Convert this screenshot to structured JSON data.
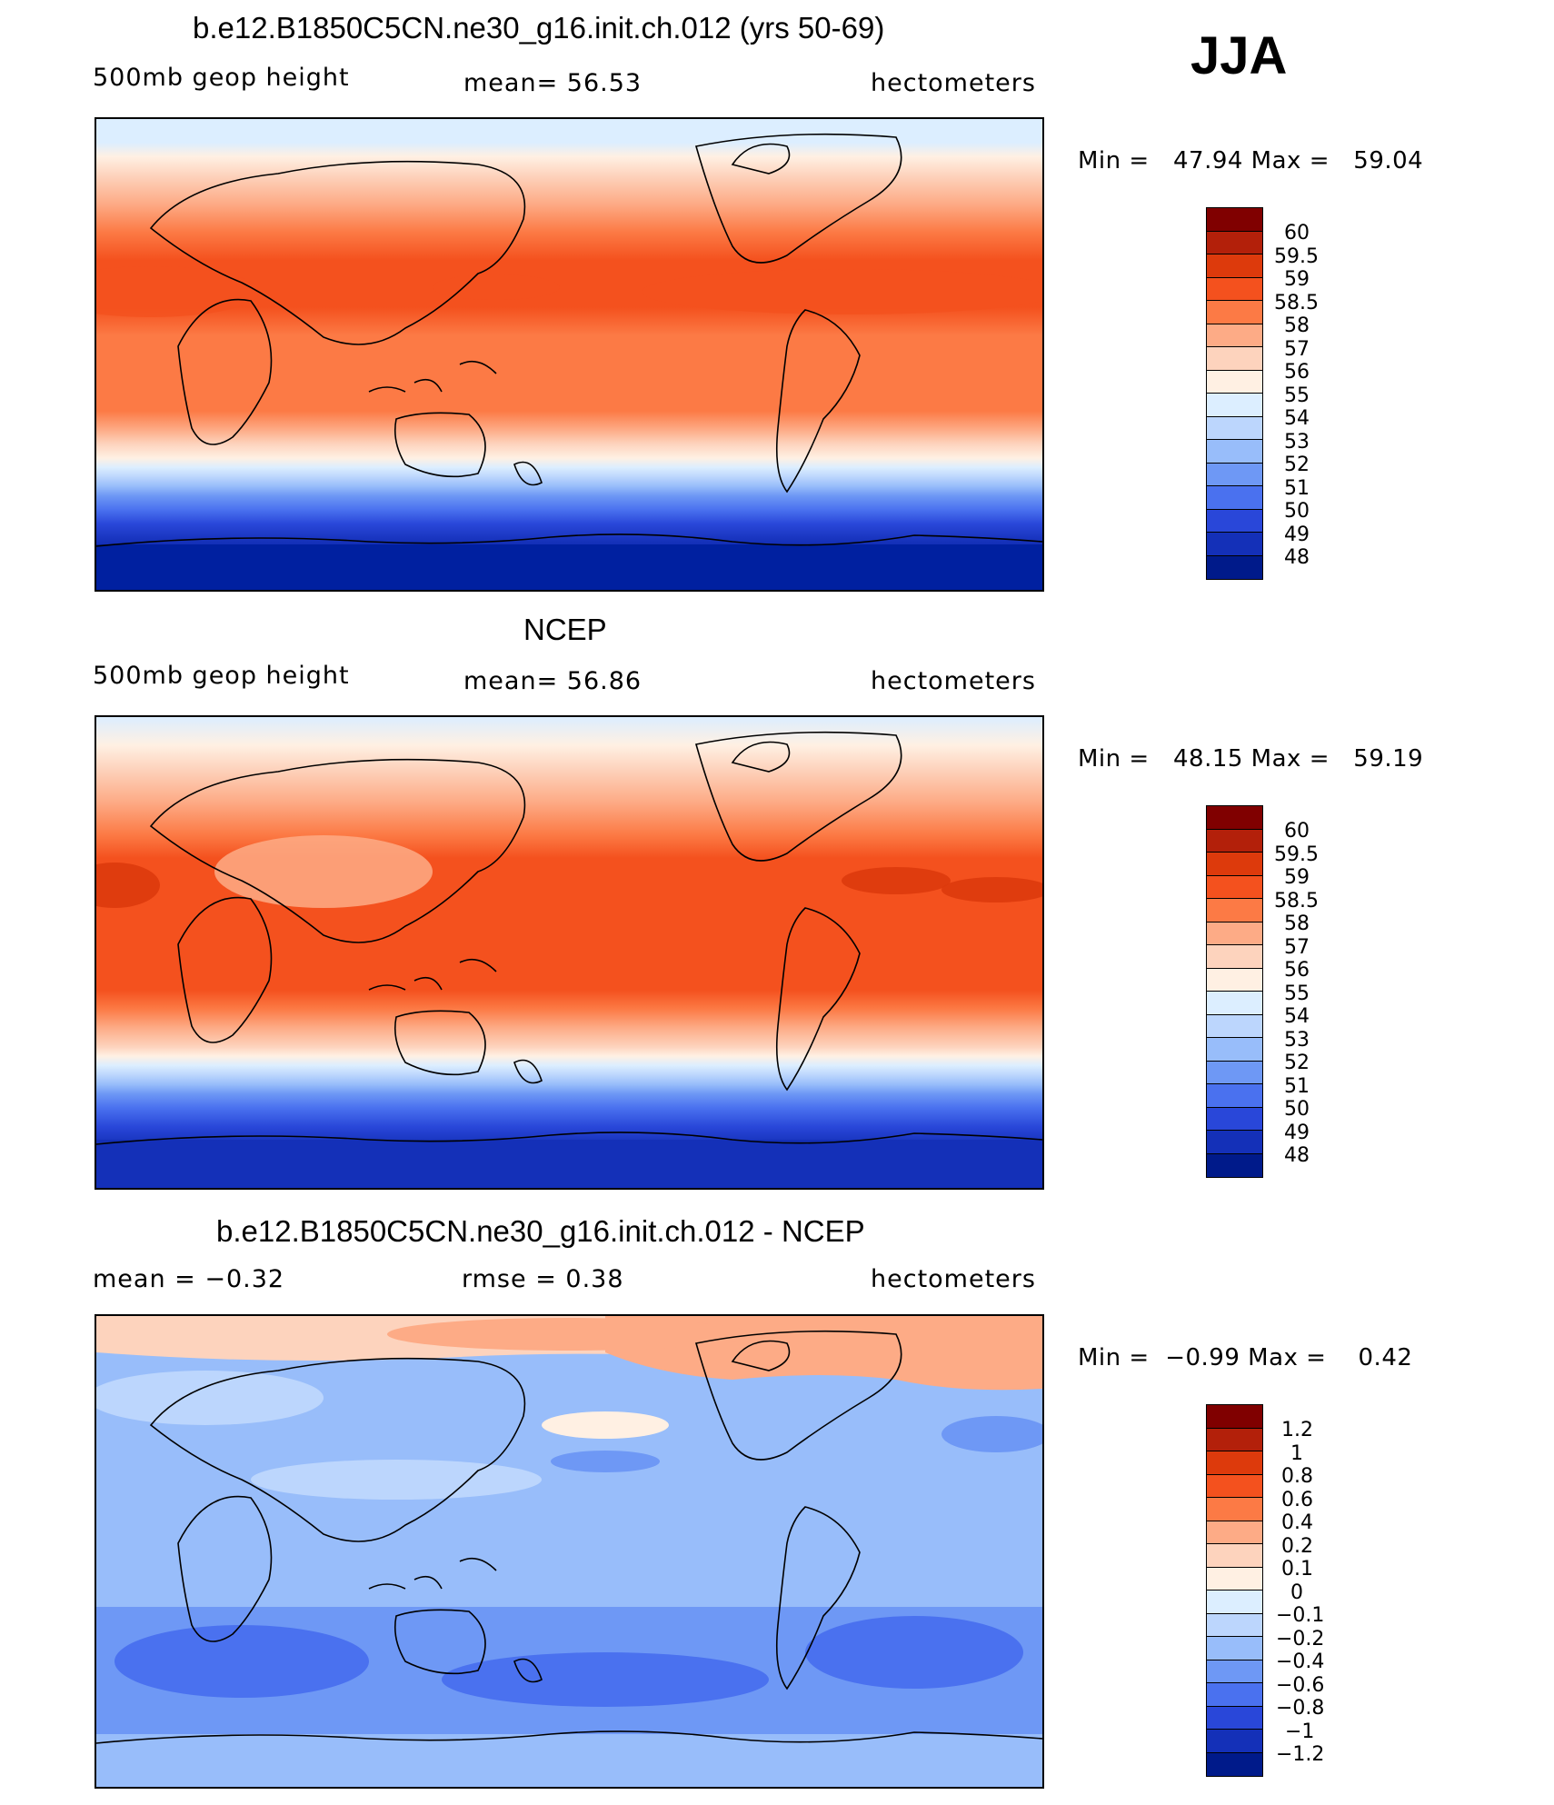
{
  "season": "JJA",
  "panels": [
    {
      "title": "b.e12.B1850C5CN.ne30_g16.init.ch.012 (yrs 50-69)",
      "left": "500mb geop height",
      "center": "mean=   56.53",
      "right": "hectometers",
      "minmax": "Min =   47.94 Max =   59.04",
      "bar_labels": [
        "60",
        "59.5",
        "59",
        "58.5",
        "58",
        "57",
        "56",
        "55",
        "54",
        "53",
        "52",
        "51",
        "50",
        "49",
        "48"
      ]
    },
    {
      "title": "NCEP",
      "left": "500mb geop height",
      "center": "mean=   56.86",
      "right": "hectometers",
      "minmax": "Min =   48.15 Max =   59.19",
      "bar_labels": [
        "60",
        "59.5",
        "59",
        "58.5",
        "58",
        "57",
        "56",
        "55",
        "54",
        "53",
        "52",
        "51",
        "50",
        "49",
        "48"
      ]
    },
    {
      "title": "b.e12.B1850C5CN.ne30_g16.init.ch.012 - NCEP",
      "left": "mean =   −0.32",
      "center": "rmse =    0.38",
      "right": "hectometers",
      "minmax": "Min =  −0.99 Max =    0.42",
      "bar_labels": [
        "1.2",
        "1",
        "0.8",
        "0.6",
        "0.4",
        "0.2",
        "0.1",
        "0",
        "−0.1",
        "−0.2",
        "−0.4",
        "−0.6",
        "−0.8",
        "−1",
        "−1.2"
      ]
    }
  ],
  "palette": [
    "#800000",
    "#b3200a",
    "#dd3a0c",
    "#f4511e",
    "#fc7a45",
    "#fdab86",
    "#fdd3bd",
    "#fff0e3",
    "#dceeff",
    "#bcd6fd",
    "#98bdfa",
    "#6e98f5",
    "#4a71ef",
    "#2947d9",
    "#1430b8",
    "#001a8a"
  ]
}
